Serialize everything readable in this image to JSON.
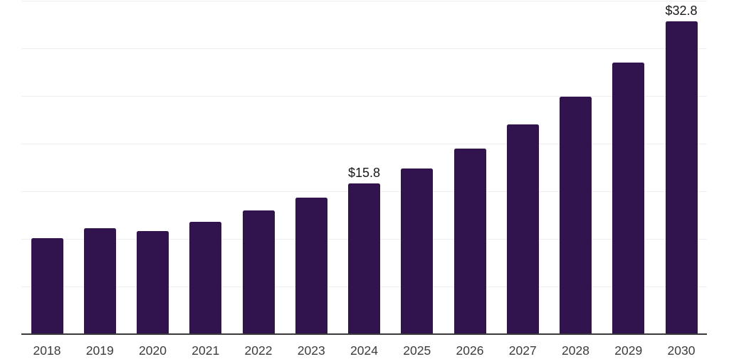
{
  "chart_data": {
    "type": "bar",
    "title": "",
    "xlabel": "",
    "ylabel": "",
    "categories": [
      "2018",
      "2019",
      "2020",
      "2021",
      "2022",
      "2023",
      "2024",
      "2025",
      "2026",
      "2027",
      "2028",
      "2029",
      "2030"
    ],
    "values": [
      10.1,
      11.1,
      10.8,
      11.8,
      13.0,
      14.3,
      15.8,
      17.4,
      19.5,
      22.0,
      24.9,
      28.5,
      32.8
    ],
    "data_labels": {
      "2024": "$15.8",
      "2030": "$32.8"
    },
    "ylim": [
      0,
      35
    ],
    "gridline_step": 5,
    "grid": true,
    "y_axis_tick_labels_visible": false,
    "legend_position": "none",
    "colors": {
      "bar": "#31134E",
      "gridline": "#EFEFEF",
      "axis_line": "#3A3A3A",
      "x_tick_label": "#3C3C3C",
      "value_label": "#171717",
      "background": "#FFFFFF"
    }
  }
}
